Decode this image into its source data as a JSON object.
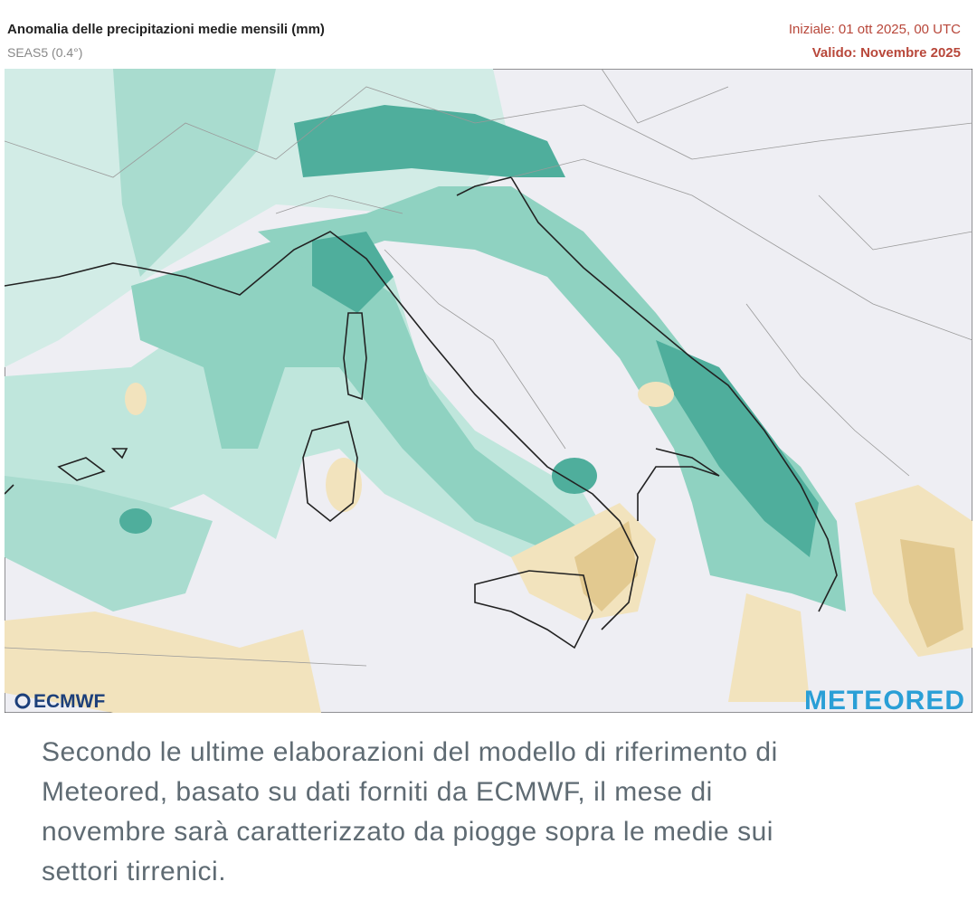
{
  "header": {
    "title": "Anomalia delle precipitazioni medie mensili (mm)",
    "subtitle": "SEAS5 (0.4°)",
    "initial": "Iniziale: 01 ott 2025, 00 UTC",
    "valid": "Valido: Novembre 2025"
  },
  "logos": {
    "left": "ECMWF",
    "right": "METEORED"
  },
  "caption": {
    "lines": [
      "Secondo le ultime elaborazioni del modello di riferimento di",
      "Meteored, basato su dati forniti da ECMWF, il mese di",
      "novembre sarà caratterizzato da piogge sopra le medie sui",
      "settori tirrenici."
    ]
  }
}
